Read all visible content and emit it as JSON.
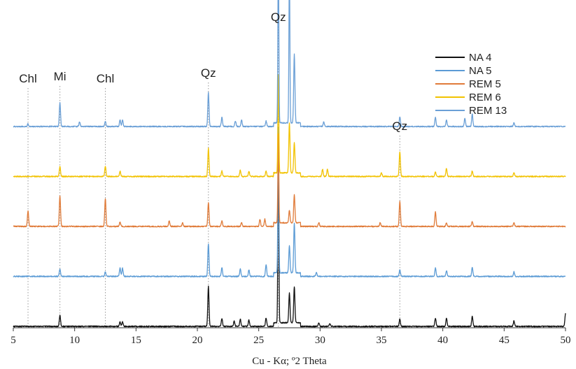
{
  "chart_data": {
    "type": "line",
    "xlabel": "Cu - Kα; º2 Theta",
    "ylabel": "",
    "title": "",
    "xlim": [
      5,
      50
    ],
    "x_ticks": [
      5,
      10,
      15,
      20,
      25,
      30,
      35,
      40,
      45,
      50
    ],
    "y_offset_step": 0.55,
    "grid": false,
    "legend_position": "top-right",
    "legend": [
      "NA 4",
      "NA 5",
      "REM 5",
      "REM 6",
      "REM 13"
    ],
    "annotations": [
      {
        "label": "Chl",
        "x": 6.2
      },
      {
        "label": "Mi",
        "x": 8.8
      },
      {
        "label": "Chl",
        "x": 12.5
      },
      {
        "label": "Qz",
        "x": 20.9
      },
      {
        "label": "Qz",
        "x": 26.6
      },
      {
        "label": "Qz",
        "x": 36.5
      }
    ],
    "series": [
      {
        "name": "NA 4",
        "color": "#111111",
        "baseline": 0.0,
        "peaks": [
          {
            "x": 8.8,
            "h": 0.12
          },
          {
            "x": 13.7,
            "h": 0.05
          },
          {
            "x": 13.9,
            "h": 0.05
          },
          {
            "x": 20.9,
            "h": 0.44
          },
          {
            "x": 22.0,
            "h": 0.09
          },
          {
            "x": 23.0,
            "h": 0.06
          },
          {
            "x": 23.5,
            "h": 0.08
          },
          {
            "x": 24.2,
            "h": 0.07
          },
          {
            "x": 25.6,
            "h": 0.09
          },
          {
            "x": 26.6,
            "h": 2.0
          },
          {
            "x": 27.5,
            "h": 0.33
          },
          {
            "x": 27.9,
            "h": 0.4
          },
          {
            "x": 29.9,
            "h": 0.04
          },
          {
            "x": 30.8,
            "h": 0.03
          },
          {
            "x": 36.5,
            "h": 0.08
          },
          {
            "x": 39.4,
            "h": 0.09
          },
          {
            "x": 40.3,
            "h": 0.09
          },
          {
            "x": 42.4,
            "h": 0.11
          },
          {
            "x": 45.8,
            "h": 0.06
          },
          {
            "x": 50.0,
            "h": 0.14
          }
        ]
      },
      {
        "name": "NA 5",
        "color": "#5b9bd5",
        "baseline": 0.55,
        "peaks": [
          {
            "x": 8.8,
            "h": 0.08
          },
          {
            "x": 12.5,
            "h": 0.05
          },
          {
            "x": 13.7,
            "h": 0.09
          },
          {
            "x": 13.9,
            "h": 0.09
          },
          {
            "x": 20.9,
            "h": 0.36
          },
          {
            "x": 22.0,
            "h": 0.1
          },
          {
            "x": 23.5,
            "h": 0.08
          },
          {
            "x": 24.2,
            "h": 0.07
          },
          {
            "x": 25.6,
            "h": 0.13
          },
          {
            "x": 26.6,
            "h": 1.6
          },
          {
            "x": 27.5,
            "h": 0.3
          },
          {
            "x": 27.9,
            "h": 0.55
          },
          {
            "x": 29.7,
            "h": 0.04
          },
          {
            "x": 36.5,
            "h": 0.07
          },
          {
            "x": 39.4,
            "h": 0.09
          },
          {
            "x": 40.3,
            "h": 0.06
          },
          {
            "x": 42.4,
            "h": 0.1
          },
          {
            "x": 45.8,
            "h": 0.05
          }
        ]
      },
      {
        "name": "REM 5",
        "color": "#e07b39",
        "baseline": 1.1,
        "peaks": [
          {
            "x": 6.2,
            "h": 0.17
          },
          {
            "x": 8.8,
            "h": 0.34
          },
          {
            "x": 12.5,
            "h": 0.31
          },
          {
            "x": 13.7,
            "h": 0.05
          },
          {
            "x": 17.7,
            "h": 0.06
          },
          {
            "x": 18.8,
            "h": 0.04
          },
          {
            "x": 20.9,
            "h": 0.26
          },
          {
            "x": 22.0,
            "h": 0.06
          },
          {
            "x": 23.6,
            "h": 0.04
          },
          {
            "x": 25.1,
            "h": 0.08
          },
          {
            "x": 25.5,
            "h": 0.08
          },
          {
            "x": 26.6,
            "h": 0.98
          },
          {
            "x": 27.5,
            "h": 0.14
          },
          {
            "x": 27.9,
            "h": 0.31
          },
          {
            "x": 29.9,
            "h": 0.04
          },
          {
            "x": 34.9,
            "h": 0.04
          },
          {
            "x": 36.5,
            "h": 0.28
          },
          {
            "x": 39.4,
            "h": 0.16
          },
          {
            "x": 40.3,
            "h": 0.04
          },
          {
            "x": 42.4,
            "h": 0.05
          },
          {
            "x": 45.8,
            "h": 0.04
          }
        ]
      },
      {
        "name": "REM 6",
        "color": "#f2c200",
        "baseline": 1.65,
        "peaks": [
          {
            "x": 8.8,
            "h": 0.11
          },
          {
            "x": 12.5,
            "h": 0.11
          },
          {
            "x": 13.7,
            "h": 0.06
          },
          {
            "x": 20.9,
            "h": 0.31
          },
          {
            "x": 22.0,
            "h": 0.06
          },
          {
            "x": 23.5,
            "h": 0.07
          },
          {
            "x": 24.2,
            "h": 0.06
          },
          {
            "x": 25.6,
            "h": 0.06
          },
          {
            "x": 26.6,
            "h": 1.08
          },
          {
            "x": 27.5,
            "h": 0.55
          },
          {
            "x": 27.9,
            "h": 0.33
          },
          {
            "x": 30.2,
            "h": 0.08
          },
          {
            "x": 30.6,
            "h": 0.08
          },
          {
            "x": 35.0,
            "h": 0.04
          },
          {
            "x": 36.5,
            "h": 0.27
          },
          {
            "x": 39.4,
            "h": 0.05
          },
          {
            "x": 40.3,
            "h": 0.09
          },
          {
            "x": 42.4,
            "h": 0.06
          },
          {
            "x": 45.8,
            "h": 0.04
          }
        ]
      },
      {
        "name": "REM 13",
        "color": "#6a9fd6",
        "baseline": 2.2,
        "peaks": [
          {
            "x": 6.2,
            "h": 0.03
          },
          {
            "x": 8.8,
            "h": 0.26
          },
          {
            "x": 10.4,
            "h": 0.05
          },
          {
            "x": 12.5,
            "h": 0.06
          },
          {
            "x": 13.7,
            "h": 0.07
          },
          {
            "x": 13.9,
            "h": 0.07
          },
          {
            "x": 20.9,
            "h": 0.37
          },
          {
            "x": 22.0,
            "h": 0.1
          },
          {
            "x": 23.1,
            "h": 0.06
          },
          {
            "x": 23.6,
            "h": 0.07
          },
          {
            "x": 25.6,
            "h": 0.06
          },
          {
            "x": 26.6,
            "h": 1.88
          },
          {
            "x": 27.5,
            "h": 1.73
          },
          {
            "x": 27.9,
            "h": 0.76
          },
          {
            "x": 30.3,
            "h": 0.05
          },
          {
            "x": 36.5,
            "h": 0.11
          },
          {
            "x": 39.4,
            "h": 0.1
          },
          {
            "x": 40.3,
            "h": 0.07
          },
          {
            "x": 41.8,
            "h": 0.09
          },
          {
            "x": 42.4,
            "h": 0.14
          },
          {
            "x": 45.8,
            "h": 0.04
          }
        ]
      }
    ]
  }
}
